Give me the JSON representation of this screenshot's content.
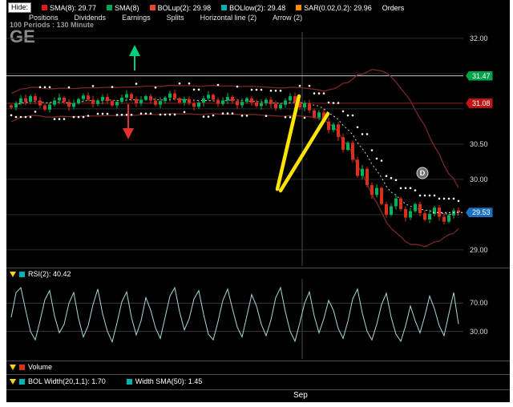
{
  "toolbar": {
    "hide_label": "Hide:",
    "indicators": [
      {
        "label": "SMA(8): 29.77",
        "color": "#e01a1a"
      },
      {
        "label": "SMA(8)",
        "color": "#00a651"
      },
      {
        "label": "BOLup(2): 29.98",
        "color": "#e8472b"
      },
      {
        "label": "BOLlow(2): 29.48",
        "color": "#00b2b2"
      },
      {
        "label": "SAR(0.02,0.2): 29.96",
        "color": "#ff8c00"
      },
      {
        "label": "Orders",
        "color": null
      }
    ],
    "menu_items": [
      "Positions",
      "Dividends",
      "Earnings",
      "Splits",
      "Horizontal line (2)",
      "Arrow (2)"
    ]
  },
  "chart": {
    "info": "100 Periods : 130 Minute",
    "symbol": "GE",
    "marker_label": "D",
    "x_axis_label": "Sep",
    "colors": {
      "up": "#00b35a",
      "down": "#d6311e",
      "band": "#7a2727",
      "sar": "#ffffff",
      "sma": "#cfcfcf",
      "annotation": "#ffe400",
      "arrow_up": "#00d07c",
      "arrow_down": "#e03131"
    },
    "price_axis": {
      "ticks": [
        {
          "label": "32.00",
          "price": 32.0
        },
        {
          "label": "30.50",
          "price": 30.5
        },
        {
          "label": "30.00",
          "price": 30.0
        },
        {
          "label": "29.00",
          "price": 29.0
        }
      ],
      "badges": [
        {
          "label": "31.47",
          "price": 31.47,
          "color": "#00a14b",
          "line_color": "#c8c8c8"
        },
        {
          "label": "31.08",
          "price": 31.08,
          "color": "#c01313",
          "line_color": "#8f2020"
        },
        {
          "label": "29.53",
          "price": 29.53,
          "color": "#1d6fc0",
          "line_color": ""
        }
      ]
    },
    "closes": [
      31.02,
      31.08,
      31.15,
      31.1,
      31.18,
      31.12,
      31.05,
      30.99,
      31.06,
      31.12,
      31.16,
      31.1,
      31.03,
      31.08,
      31.14,
      31.19,
      31.13,
      31.07,
      31.12,
      31.17,
      31.11,
      31.05,
      31.1,
      31.16,
      31.21,
      31.14,
      31.08,
      31.13,
      31.18,
      31.12,
      31.06,
      31.11,
      31.16,
      31.22,
      31.15,
      31.09,
      31.14,
      31.08,
      31.03,
      31.09,
      31.15,
      31.2,
      31.13,
      31.07,
      31.12,
      31.17,
      31.11,
      31.05,
      31.1,
      31.15,
      31.09,
      31.04,
      31.08,
      31.13,
      31.07,
      31.01,
      31.06,
      31.12,
      31.18,
      31.1,
      31.02,
      31.08,
      30.98,
      30.88,
      30.95,
      30.82,
      30.7,
      30.78,
      30.6,
      30.42,
      30.52,
      30.28,
      30.05,
      30.15,
      29.92,
      29.78,
      29.88,
      29.65,
      29.5,
      29.62,
      29.73,
      29.58,
      29.46,
      29.55,
      29.65,
      29.52,
      29.43,
      29.51,
      29.6,
      29.47,
      29.4,
      29.49,
      29.56,
      29.53
    ]
  },
  "rsi": {
    "label": "RSI(2): 40.42",
    "chip_color": "#00b2b2",
    "line_color": "#a9d8d8",
    "ticks": [
      {
        "label": "70.00",
        "value": 70
      },
      {
        "label": "30.00",
        "value": 30
      }
    ],
    "values": [
      50,
      85,
      92,
      60,
      30,
      18,
      45,
      75,
      88,
      52,
      28,
      40,
      70,
      85,
      48,
      22,
      38,
      68,
      90,
      55,
      30,
      15,
      42,
      72,
      86,
      50,
      25,
      45,
      78,
      60,
      35,
      20,
      50,
      80,
      92,
      58,
      32,
      48,
      76,
      88,
      54,
      26,
      18,
      44,
      74,
      90,
      62,
      36,
      22,
      52,
      82,
      66,
      40,
      24,
      46,
      78,
      92,
      58,
      30,
      16,
      42,
      70,
      86,
      52,
      28,
      48,
      74,
      60,
      34,
      20,
      44,
      76,
      90,
      56,
      30,
      18,
      40,
      68,
      84,
      50,
      26,
      16,
      38,
      66,
      45,
      28,
      52,
      80,
      62,
      38,
      24,
      55,
      85,
      40.42
    ]
  },
  "volume": {
    "label": "Volume",
    "chip_color": "#d6311e"
  },
  "width_row": [
    {
      "label": "BOL Width(20,1,1): 1.70",
      "chip_color": "#00b2b2"
    },
    {
      "label": "Width SMA(50): 1.45",
      "chip_color": "#00b2b2"
    }
  ]
}
